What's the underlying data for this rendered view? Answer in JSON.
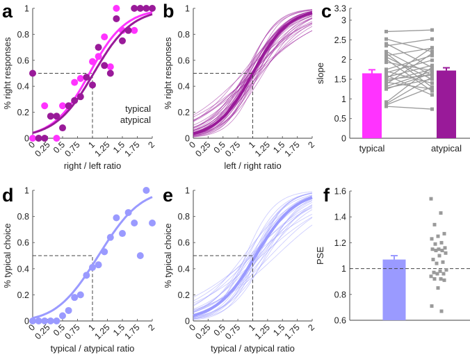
{
  "colors": {
    "typical": "#ff33ff",
    "atypical": "#991a99",
    "choice": "#9a9aff",
    "pair": "#9a9a9a",
    "axis": "#666666"
  },
  "chart_data": [
    {
      "panel": "a",
      "type": "scatter",
      "xlabel": "right / left ratio",
      "ylabel": "% right responses",
      "xlim": [
        0,
        2
      ],
      "ylim": [
        0,
        1
      ],
      "xticks": [
        "0",
        "0.25",
        "0.5",
        "0.75",
        "1",
        "1.25",
        "1.5",
        "1.75",
        "2"
      ],
      "yticks": [
        "0",
        "0.2",
        "0.4",
        "0.6",
        "0.8",
        "1"
      ],
      "legend": [
        "typical",
        "atypical"
      ],
      "legend_position": "bottom-right",
      "series": [
        {
          "name": "typical",
          "x": [
            0,
            0.2,
            0.4,
            0.5,
            0.7,
            0.8,
            1.0,
            1.1,
            1.2,
            1.3,
            1.4,
            1.5,
            1.7
          ],
          "y": [
            0,
            0.25,
            0,
            0.25,
            0.43,
            0.46,
            0.59,
            0.63,
            0.78,
            0.55,
            1.0,
            0.83,
            0.83
          ],
          "fit": {
            "pse": 0.95,
            "k": 3.3
          }
        },
        {
          "name": "atypical",
          "x": [
            0,
            0.1,
            0.2,
            0.3,
            0.4,
            0.5,
            0.6,
            0.7,
            0.8,
            0.9,
            1.0,
            1.1,
            1.2,
            1.3,
            1.4,
            1.5,
            1.6,
            1.7,
            1.8,
            1.9,
            2.0
          ],
          "y": [
            0.5,
            0,
            0,
            0.17,
            0.17,
            0.08,
            0.25,
            0.29,
            0.32,
            0.47,
            0.41,
            0.7,
            0.56,
            0.5,
            0.92,
            0.75,
            0.83,
            1,
            1,
            1,
            1
          ],
          "fit": {
            "pse": 1.02,
            "k": 3.1
          }
        }
      ]
    },
    {
      "panel": "b",
      "type": "line",
      "xlabel": "left / right ratio",
      "ylabel": "% right responses",
      "xlim": [
        0,
        2
      ],
      "ylim": [
        0,
        1
      ],
      "xticks": [
        "0",
        "0.25",
        "0.5",
        "0.75",
        "1",
        "1.25",
        "1.5",
        "1.75",
        "2"
      ],
      "yticks": [
        "0",
        "0.2",
        "0.4",
        "0.6",
        "0.8",
        "1"
      ],
      "mean_fit": {
        "pse": 1.0,
        "k": 3.3
      },
      "subject_fits": [
        [
          0.9,
          3.0
        ],
        [
          1.0,
          2.2
        ],
        [
          1.05,
          4.0
        ],
        [
          0.95,
          3.5
        ],
        [
          1.1,
          2.8
        ],
        [
          0.85,
          1.8
        ],
        [
          1.0,
          3.8
        ],
        [
          0.98,
          2.5
        ],
        [
          1.12,
          3.2
        ],
        [
          0.92,
          4.4
        ],
        [
          1.02,
          1.6
        ],
        [
          0.88,
          2.9
        ],
        [
          1.08,
          3.6
        ],
        [
          0.96,
          2.0
        ],
        [
          1.15,
          2.4
        ],
        [
          0.9,
          4.1
        ],
        [
          1.0,
          3.0
        ],
        [
          1.05,
          2.6
        ],
        [
          0.94,
          3.3
        ],
        [
          1.1,
          4.2
        ],
        [
          0.82,
          2.3
        ],
        [
          1.18,
          3.0
        ],
        [
          0.97,
          1.9
        ],
        [
          1.03,
          3.9
        ],
        [
          0.9,
          2.7
        ],
        [
          1.07,
          1.7
        ],
        [
          1.0,
          4.5
        ],
        [
          0.93,
          3.1
        ],
        [
          1.13,
          2.1
        ],
        [
          0.87,
          3.7
        ],
        [
          1.04,
          3.4
        ],
        [
          0.99,
          2.8
        ]
      ]
    },
    {
      "panel": "c",
      "type": "bar",
      "ylabel": "slope",
      "ylim": [
        0,
        3.3
      ],
      "yticks": [
        "0",
        "0.5",
        "1",
        "1.5",
        "2",
        "2.5",
        "3",
        "3.3"
      ],
      "categories": [
        "typical",
        "atypical"
      ],
      "values": [
        1.65,
        1.72
      ],
      "errors": [
        0.09,
        0.07
      ],
      "pairs": [
        [
          2.71,
          2.75
        ],
        [
          2.52,
          2.2
        ],
        [
          2.4,
          1.8
        ],
        [
          2.35,
          2.52
        ],
        [
          2.2,
          1.6
        ],
        [
          2.15,
          1.3
        ],
        [
          2.1,
          2.29
        ],
        [
          2.06,
          1.5
        ],
        [
          2.0,
          1.2
        ],
        [
          1.93,
          1.72
        ],
        [
          1.75,
          2.1
        ],
        [
          1.7,
          1.4
        ],
        [
          1.67,
          1.98
        ],
        [
          1.6,
          1.1
        ],
        [
          1.55,
          1.85
        ],
        [
          1.52,
          2.3
        ],
        [
          1.5,
          1.6
        ],
        [
          1.45,
          1.75
        ],
        [
          1.42,
          1.25
        ],
        [
          1.38,
          2.15
        ],
        [
          1.32,
          1.7
        ],
        [
          1.28,
          1.5
        ],
        [
          1.25,
          1.65
        ],
        [
          0.92,
          1.8
        ],
        [
          0.88,
          1.55
        ],
        [
          0.85,
          1.3
        ],
        [
          0.81,
          0.74
        ]
      ]
    },
    {
      "panel": "d",
      "type": "scatter",
      "xlabel": "typical / atypical ratio",
      "ylabel": "% typical choice",
      "xlim": [
        0,
        2
      ],
      "ylim": [
        0,
        1
      ],
      "xticks": [
        "0",
        "0.25",
        "0.5",
        "0.75",
        "1",
        "1.25",
        "1.5",
        "1.75",
        "2"
      ],
      "yticks": [
        "0",
        "0.2",
        "0.4",
        "0.6",
        "0.8",
        "1"
      ],
      "x": [
        0,
        0.1,
        0.2,
        0.3,
        0.4,
        0.5,
        0.6,
        0.7,
        0.8,
        0.9,
        1.0,
        1.1,
        1.2,
        1.3,
        1.4,
        1.5,
        1.6,
        1.7,
        1.8,
        1.9,
        2.0
      ],
      "y": [
        0,
        0,
        0,
        0,
        0,
        0.04,
        0.08,
        0.18,
        0.2,
        0.35,
        0.41,
        0.43,
        0.53,
        0.64,
        0.79,
        0.67,
        0.83,
        0.75,
        0.5,
        1.0,
        0.75
      ],
      "fit": {
        "mu": 1.1,
        "sigma": 0.55
      }
    },
    {
      "panel": "e",
      "type": "line",
      "xlabel": "typical / atypical ratio",
      "ylabel": "% typical choice",
      "xlim": [
        0,
        2
      ],
      "ylim": [
        0,
        1
      ],
      "xticks": [
        "0",
        "0.25",
        "0.5",
        "0.75",
        "1",
        "1.25",
        "1.5",
        "1.75",
        "2"
      ],
      "yticks": [
        "0",
        "0.2",
        "0.4",
        "0.6",
        "0.8",
        "1"
      ],
      "mean_fit": {
        "pse": 1.05,
        "k": 3.0
      },
      "subject_fits": [
        [
          1.0,
          2.5
        ],
        [
          1.1,
          3.5
        ],
        [
          0.95,
          1.8
        ],
        [
          1.2,
          2.2
        ],
        [
          1.05,
          4.0
        ],
        [
          0.9,
          3.0
        ],
        [
          1.15,
          1.6
        ],
        [
          1.0,
          3.8
        ],
        [
          1.25,
          2.8
        ],
        [
          0.98,
          2.0
        ],
        [
          1.08,
          4.3
        ],
        [
          0.85,
          2.4
        ],
        [
          1.3,
          1.9
        ],
        [
          1.02,
          3.2
        ],
        [
          1.12,
          2.6
        ],
        [
          0.93,
          3.6
        ],
        [
          1.18,
          3.0
        ],
        [
          1.0,
          1.5
        ],
        [
          1.06,
          2.9
        ],
        [
          0.88,
          4.1
        ],
        [
          1.22,
          3.4
        ],
        [
          1.1,
          2.1
        ],
        [
          0.96,
          2.7
        ],
        [
          1.4,
          1.7
        ],
        [
          1.03,
          3.9
        ],
        [
          1.14,
          2.3
        ]
      ]
    },
    {
      "panel": "f",
      "type": "bar",
      "ylabel": "PSE",
      "ylim": [
        0.6,
        1.6
      ],
      "yticks": [
        "0.6",
        "0.8",
        "1",
        "1.2",
        "1.4",
        "1.6"
      ],
      "values": [
        1.07
      ],
      "errors": [
        0.03
      ],
      "reference_line": 1,
      "points": [
        1.54,
        1.43,
        1.34,
        1.27,
        1.25,
        1.23,
        1.2,
        1.19,
        1.16,
        1.15,
        1.15,
        1.14,
        1.14,
        1.12,
        1.1,
        1.07,
        1.05,
        1.04,
        0.99,
        0.98,
        0.97,
        0.96,
        0.96,
        0.94,
        0.92,
        0.92,
        0.91,
        0.85,
        0.71,
        0.67
      ]
    }
  ],
  "panel_labels": [
    "a",
    "b",
    "c",
    "d",
    "e",
    "f"
  ]
}
